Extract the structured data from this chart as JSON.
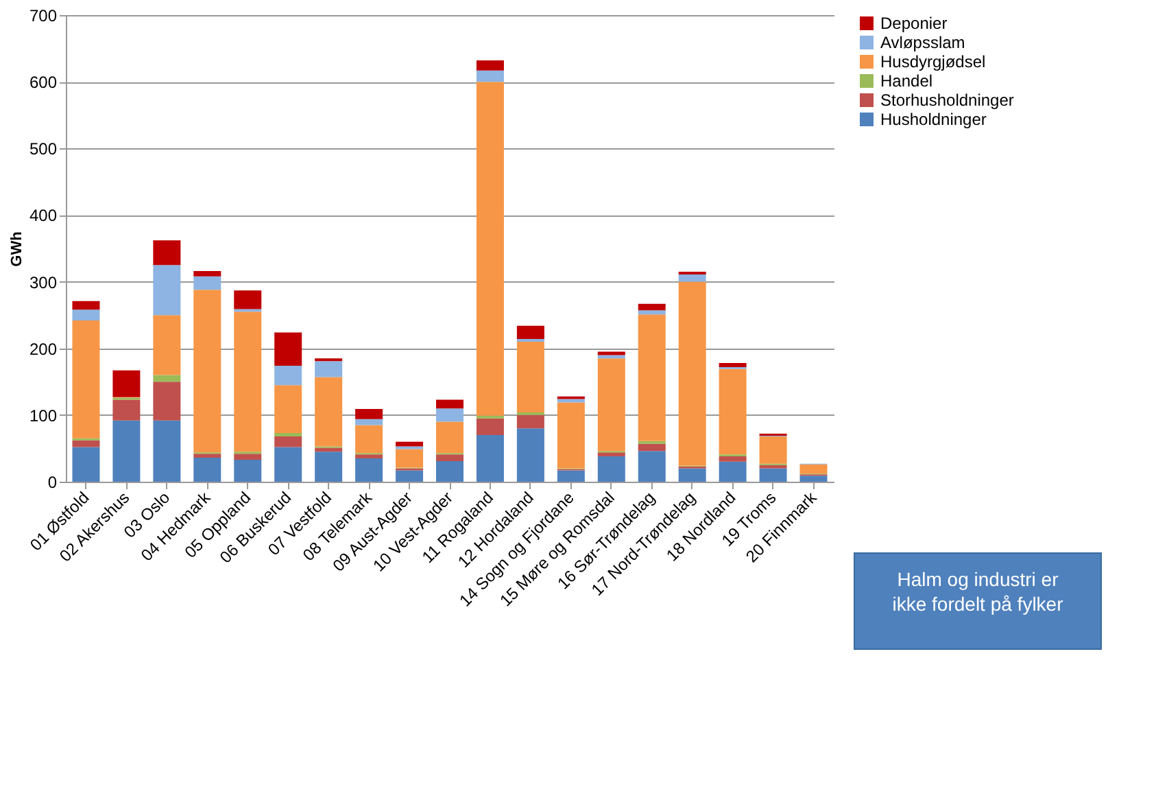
{
  "chart_data": {
    "type": "bar",
    "stacked": true,
    "ylabel": "GWh",
    "categories": [
      "01 Østfold",
      "02 Akershus",
      "03 Oslo",
      "04 Hedmark",
      "05 Oppland",
      "06 Buskerud",
      "07 Vestfold",
      "08 Telemark",
      "09 Aust-Agder",
      "10 Vest-Agder",
      "11 Rogaland",
      "12 Hordaland",
      "14 Sogn og Fjordane",
      "15 Møre og Romsdal",
      "16 Sør-Trøndelag",
      "17 Nord-Trøndelag",
      "18 Nordland",
      "19 Troms",
      "20 Finnmark"
    ],
    "series": [
      {
        "name": "Husholdninger",
        "color": "#4f81bd",
        "values": [
          52,
          92,
          92,
          36,
          33,
          52,
          45,
          35,
          17,
          31,
          70,
          80,
          17,
          38,
          46,
          20,
          30,
          20,
          9
        ]
      },
      {
        "name": "Storhusholdninger",
        "color": "#c0504d",
        "values": [
          10,
          31,
          58,
          6,
          9,
          16,
          6,
          6,
          3,
          10,
          25,
          20,
          2,
          6,
          11,
          3,
          8,
          5,
          2
        ]
      },
      {
        "name": "Handel",
        "color": "#9bbb59",
        "values": [
          3,
          3,
          10,
          2,
          3,
          5,
          2,
          2,
          1,
          2,
          4,
          4,
          1,
          2,
          4,
          1,
          3,
          2,
          1
        ]
      },
      {
        "name": "Husdyrgjødsel",
        "color": "#f79646",
        "values": [
          177,
          1,
          90,
          244,
          210,
          72,
          104,
          42,
          28,
          47,
          501,
          106,
          99,
          139,
          190,
          276,
          128,
          41,
          14
        ]
      },
      {
        "name": "Avløpsslam",
        "color": "#8db4e2",
        "values": [
          16,
          0,
          75,
          20,
          4,
          29,
          24,
          9,
          4,
          20,
          17,
          4,
          5,
          5,
          6,
          11,
          3,
          1,
          1
        ]
      },
      {
        "name": "Deponier",
        "color": "#c00000",
        "values": [
          13,
          40,
          37,
          8,
          28,
          50,
          4,
          15,
          7,
          13,
          15,
          20,
          4,
          5,
          10,
          4,
          6,
          3,
          0
        ]
      }
    ],
    "ylim": [
      0,
      700
    ],
    "yticks": [
      0,
      100,
      200,
      300,
      400,
      500,
      600,
      700
    ],
    "grid": "y",
    "legend": "right",
    "annotations": [
      "Halm og industri er ikke fordelt på fylker"
    ]
  }
}
